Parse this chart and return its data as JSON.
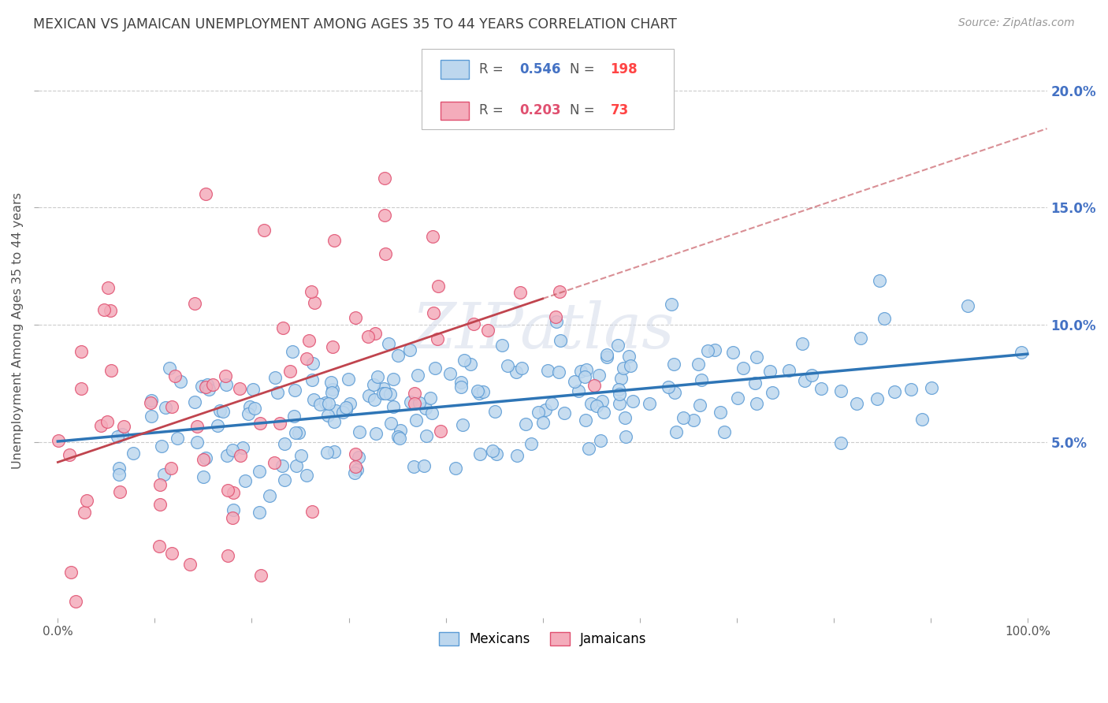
{
  "title": "MEXICAN VS JAMAICAN UNEMPLOYMENT AMONG AGES 35 TO 44 YEARS CORRELATION CHART",
  "source": "Source: ZipAtlas.com",
  "ylabel": "Unemployment Among Ages 35 to 44 years",
  "watermark": "ZIPatlas",
  "legend_blue_r": "0.546",
  "legend_blue_n": "198",
  "legend_pink_r": "0.203",
  "legend_pink_n": "73",
  "blue_fill": "#BDD7EE",
  "blue_edge": "#5B9BD5",
  "pink_fill": "#F4ACBB",
  "pink_edge": "#E05070",
  "blue_line": "#2E75B6",
  "pink_line": "#C0444E",
  "background_color": "#FFFFFF",
  "grid_color": "#CCCCCC",
  "title_color": "#404040",
  "source_color": "#999999",
  "xlim": [
    -0.02,
    1.02
  ],
  "ylim": [
    -0.025,
    0.22
  ],
  "y_tick_positions": [
    0.05,
    0.1,
    0.15,
    0.2
  ],
  "y_tick_labels": [
    "5.0%",
    "10.0%",
    "15.0%",
    "20.0%"
  ],
  "x_tick_positions": [
    0.0,
    0.1,
    0.2,
    0.3,
    0.4,
    0.5,
    0.6,
    0.7,
    0.8,
    0.9,
    1.0
  ],
  "x_tick_labels": [
    "0.0%",
    "",
    "",
    "",
    "",
    "",
    "",
    "",
    "",
    "",
    "100.0%"
  ],
  "seed": 42
}
